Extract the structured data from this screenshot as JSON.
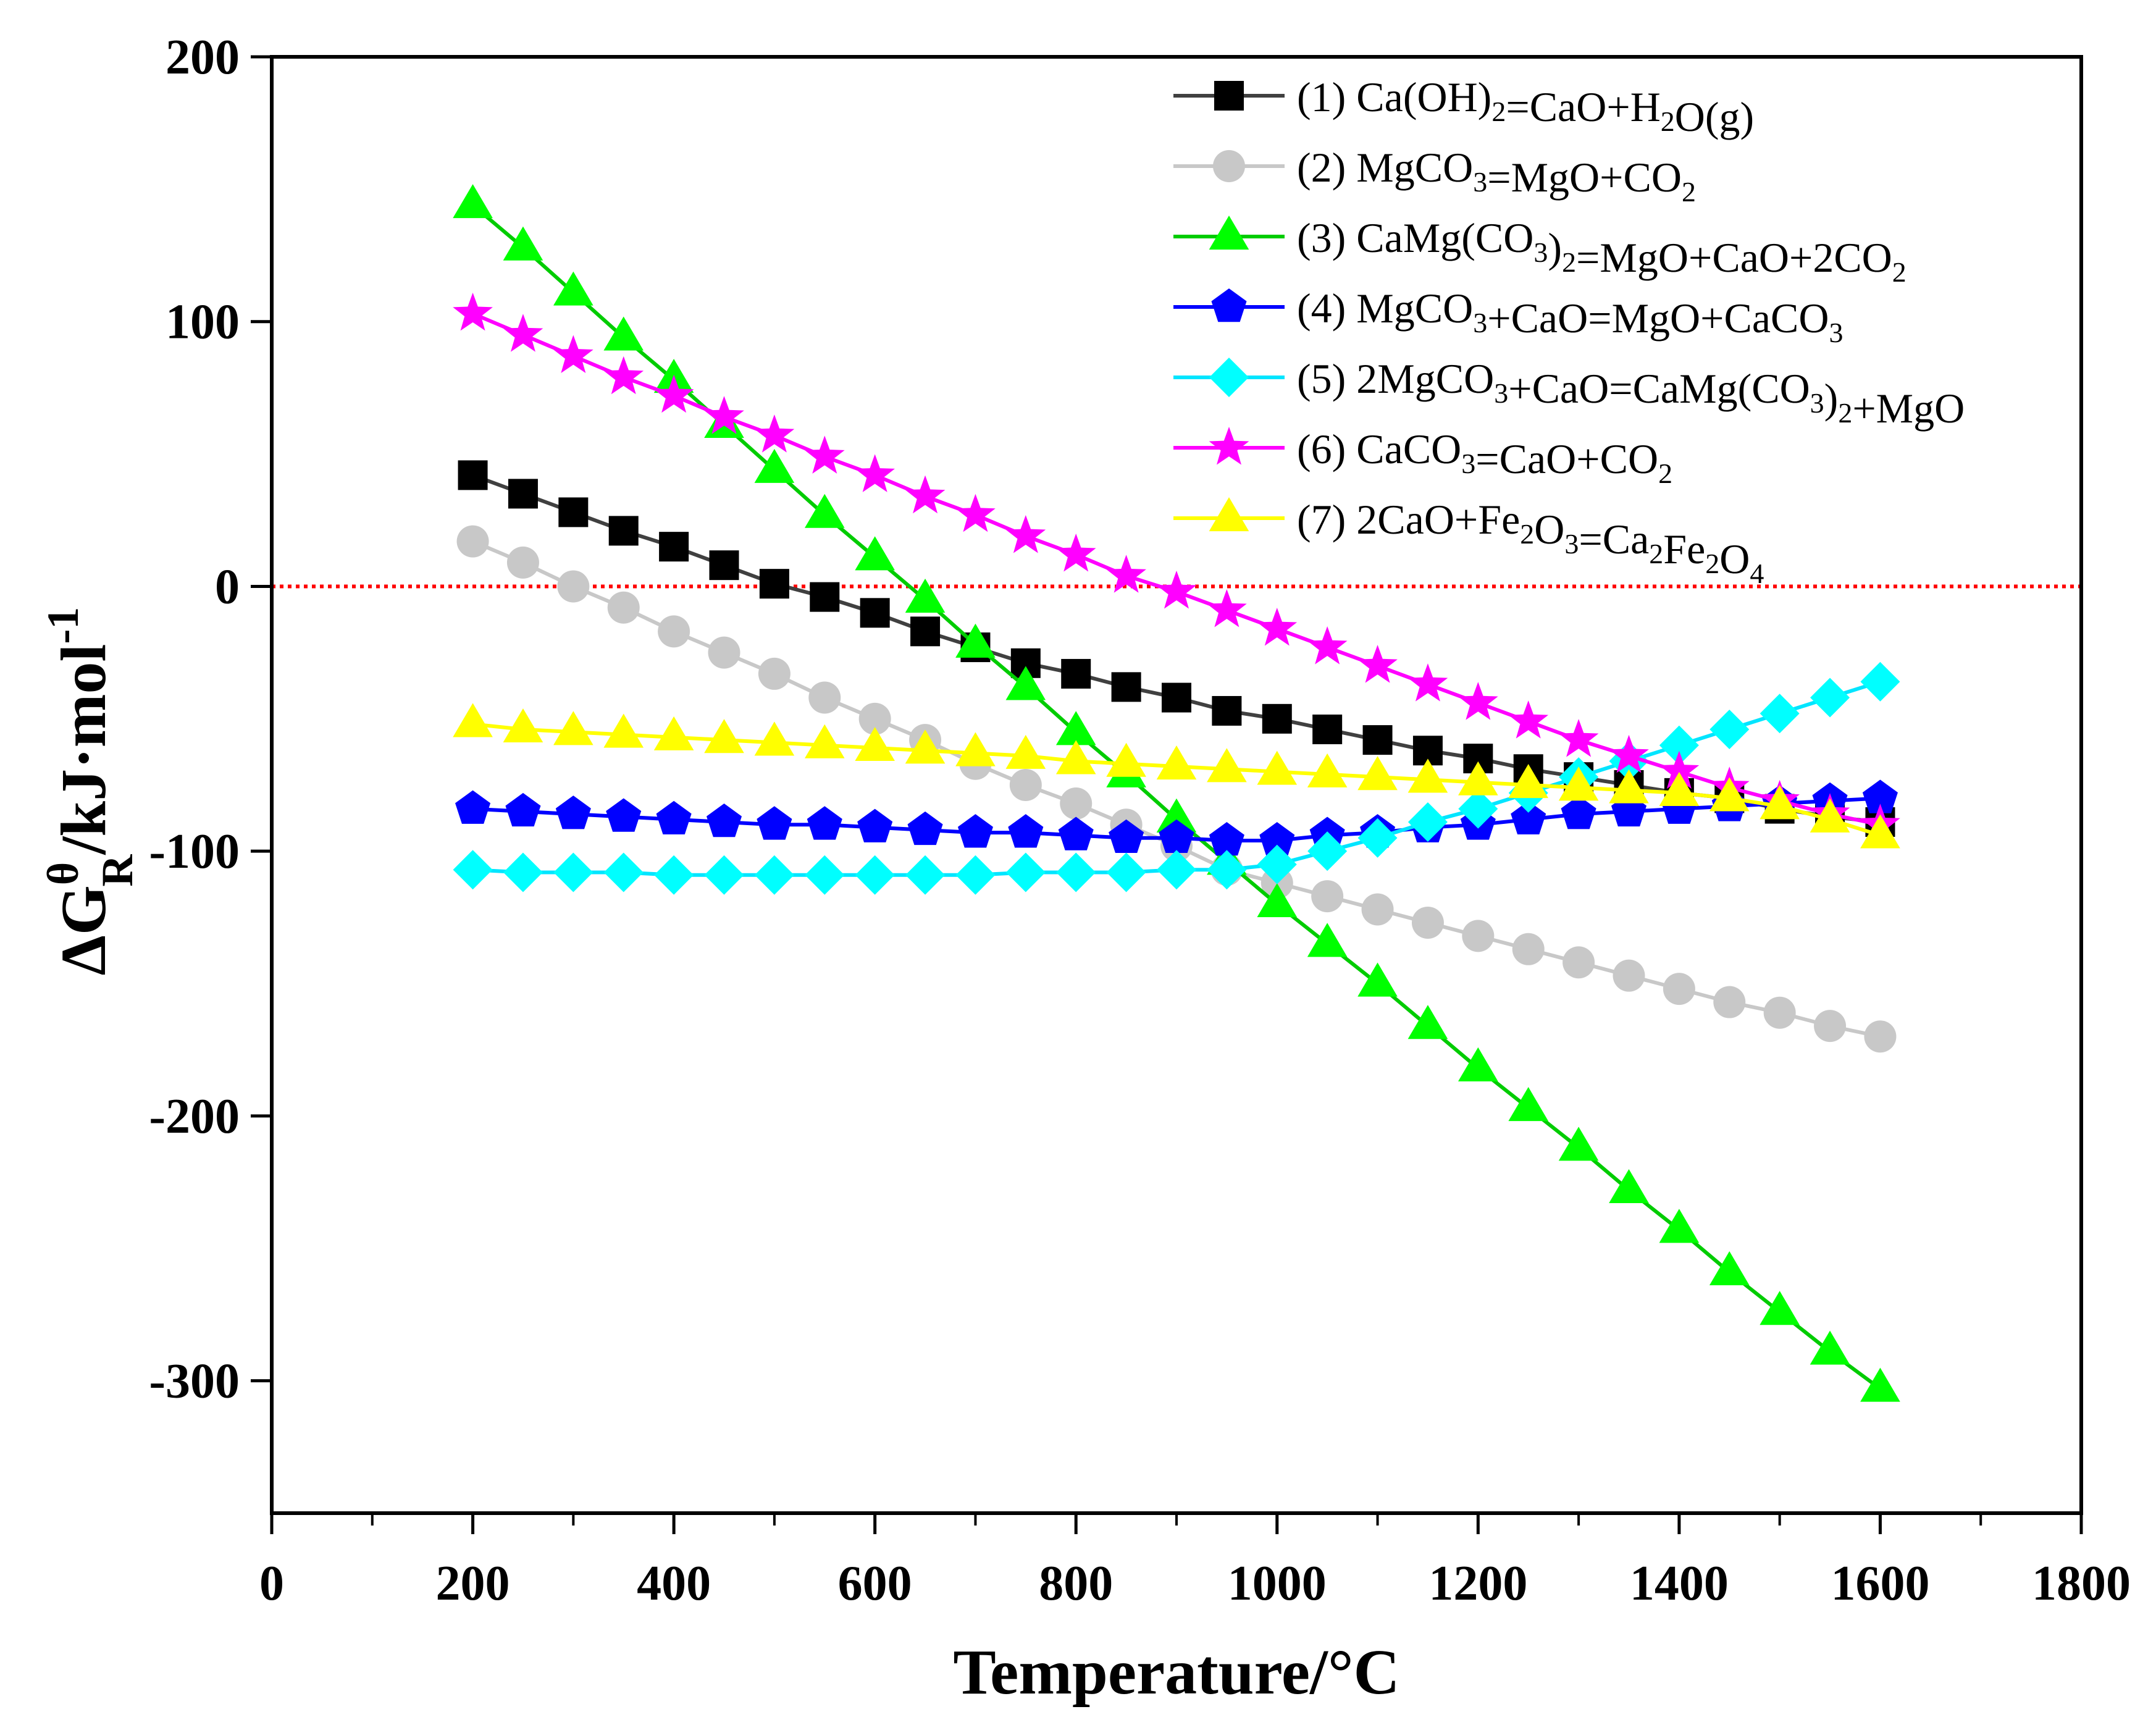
{
  "chart_data": {
    "type": "line",
    "xlabel": "Temperature/°C",
    "ylabel": {
      "base": "ΔG",
      "sup": "θ",
      "sub": "R",
      "rest": "/kJ·mol",
      "rest_sup": "-1"
    },
    "xlim": [
      0,
      1800
    ],
    "ylim": [
      -350,
      200
    ],
    "xticks": [
      0,
      200,
      400,
      600,
      800,
      1000,
      1200,
      1400,
      1600,
      1800
    ],
    "xtick_labels": [
      "0",
      "200",
      "400",
      "600",
      "800",
      "1000",
      "1200",
      "1400",
      "1600",
      "1800"
    ],
    "yticks": [
      200,
      100,
      0,
      -100,
      -200,
      -300
    ],
    "ytick_labels": [
      "200",
      "100",
      "0",
      "-100",
      "-200",
      "-300"
    ],
    "zero_line": {
      "y": 0,
      "color": "#ff0000",
      "style": "dotted"
    },
    "grid": false,
    "legend_position": "top-right",
    "x": [
      200,
      250,
      300,
      350,
      400,
      450,
      500,
      550,
      600,
      650,
      700,
      750,
      800,
      850,
      900,
      950,
      1000,
      1050,
      1100,
      1150,
      1200,
      1250,
      1300,
      1350,
      1400,
      1450,
      1500,
      1550,
      1600
    ],
    "series": [
      {
        "name": "(1) Ca(OH)2=CaO+H2O(g)",
        "legend_parts": [
          [
            "(1) Ca(OH)",
            ""
          ],
          [
            "2",
            "sub"
          ],
          [
            "=CaO+H",
            ""
          ],
          [
            "2",
            "sub"
          ],
          [
            "O(g)",
            ""
          ]
        ],
        "marker": "square",
        "color": "#000000",
        "line_color": "#404040",
        "values": [
          42,
          35,
          28,
          21,
          15,
          8,
          1,
          -4,
          -10,
          -17,
          -23,
          -29,
          -33,
          -38,
          -42,
          -47,
          -50,
          -54,
          -58,
          -62,
          -65,
          -69,
          -72,
          -75,
          -78,
          -80,
          -84,
          -87,
          -89
        ]
      },
      {
        "name": "(2) MgCO3=MgO+CO2",
        "legend_parts": [
          [
            "(2) MgCO",
            ""
          ],
          [
            "3",
            "sub"
          ],
          [
            "=MgO+CO",
            ""
          ],
          [
            "2",
            "sub"
          ]
        ],
        "marker": "circle",
        "color": "#c8c8c8",
        "line_color": "#c8c8c8",
        "values": [
          17,
          9,
          0,
          -8,
          -17,
          -25,
          -33,
          -42,
          -50,
          -58,
          -67,
          -75,
          -82,
          -90,
          -98,
          -107,
          -112,
          -117,
          -122,
          -127,
          -132,
          -137,
          -142,
          -147,
          -152,
          -157,
          -161,
          -166,
          -170
        ]
      },
      {
        "name": "(3) CaMg(CO3)2=MgO+CaO+2CO2",
        "legend_parts": [
          [
            "(3) CaMg(CO",
            ""
          ],
          [
            "3",
            "sub"
          ],
          [
            ")",
            ""
          ],
          [
            "2",
            "sub"
          ],
          [
            "=MgO+CaO+2CO",
            ""
          ],
          [
            "2",
            "sub"
          ]
        ],
        "marker": "triangle",
        "color": "#00ff00",
        "line_color": "#00cc00",
        "values": [
          144,
          128,
          111,
          94,
          78,
          61,
          44,
          27,
          11,
          -5,
          -22,
          -38,
          -55,
          -71,
          -88,
          -104,
          -120,
          -135,
          -150,
          -166,
          -182,
          -197,
          -212,
          -228,
          -243,
          -259,
          -274,
          -289,
          -303
        ]
      },
      {
        "name": "(4) MgCO3+CaO=MgO+CaCO3",
        "legend_parts": [
          [
            "(4) MgCO",
            ""
          ],
          [
            "3",
            "sub"
          ],
          [
            "+CaO=MgO+CaCO",
            ""
          ],
          [
            "3",
            "sub"
          ]
        ],
        "marker": "pentagon",
        "color": "#0000ff",
        "line_color": "#0000ff",
        "values": [
          -84,
          -85,
          -86,
          -87,
          -88,
          -89,
          -90,
          -90,
          -91,
          -92,
          -93,
          -93,
          -94,
          -95,
          -95,
          -96,
          -96,
          -94,
          -93,
          -91,
          -90,
          -88,
          -86,
          -85,
          -84,
          -83,
          -82,
          -81,
          -80
        ]
      },
      {
        "name": "(5) 2MgCO3+CaO=CaMg(CO3)2+MgO",
        "legend_parts": [
          [
            "(5) 2MgCO",
            ""
          ],
          [
            "3",
            "sub"
          ],
          [
            "+CaO=CaMg(CO",
            ""
          ],
          [
            "3",
            "sub"
          ],
          [
            ")",
            ""
          ],
          [
            "2",
            "sub"
          ],
          [
            "+MgO",
            ""
          ]
        ],
        "marker": "diamond",
        "color": "#00ffff",
        "line_color": "#00e5ff",
        "values": [
          -107,
          -108,
          -108,
          -108,
          -109,
          -109,
          -109,
          -109,
          -109,
          -109,
          -109,
          -108,
          -108,
          -108,
          -107,
          -107,
          -105,
          -100,
          -95,
          -89,
          -84,
          -78,
          -72,
          -66,
          -60,
          -54,
          -48,
          -42,
          -36
        ]
      },
      {
        "name": "(6) CaCO3=CaO+CO2",
        "legend_parts": [
          [
            "(6) CaCO",
            ""
          ],
          [
            "3",
            "sub"
          ],
          [
            "=CaO+CO",
            ""
          ],
          [
            "2",
            "sub"
          ]
        ],
        "marker": "star",
        "color": "#ff00ff",
        "line_color": "#ff00ff",
        "values": [
          103,
          95,
          87,
          79,
          72,
          64,
          57,
          49,
          42,
          34,
          27,
          19,
          12,
          4,
          -2,
          -9,
          -16,
          -23,
          -30,
          -37,
          -44,
          -51,
          -58,
          -64,
          -70,
          -76,
          -81,
          -86,
          -90
        ]
      },
      {
        "name": "(7) 2CaO+Fe2O3=Ca2Fe2O4",
        "legend_parts": [
          [
            "(7) 2CaO+Fe",
            ""
          ],
          [
            "2",
            "sub"
          ],
          [
            "O",
            ""
          ],
          [
            "3",
            "sub"
          ],
          [
            "=Ca",
            ""
          ],
          [
            "2",
            "sub"
          ],
          [
            "Fe",
            ""
          ],
          [
            "2",
            "sub"
          ],
          [
            "O",
            ""
          ],
          [
            "4",
            "sub"
          ]
        ],
        "marker": "triangle",
        "color": "#ffff00",
        "line_color": "#ffff00",
        "values": [
          -52,
          -54,
          -55,
          -56,
          -57,
          -58,
          -59,
          -60,
          -61,
          -62,
          -63,
          -64,
          -66,
          -67,
          -68,
          -69,
          -70,
          -71,
          -72,
          -73,
          -74,
          -75,
          -76,
          -77,
          -78,
          -80,
          -83,
          -88,
          -94
        ]
      }
    ]
  }
}
